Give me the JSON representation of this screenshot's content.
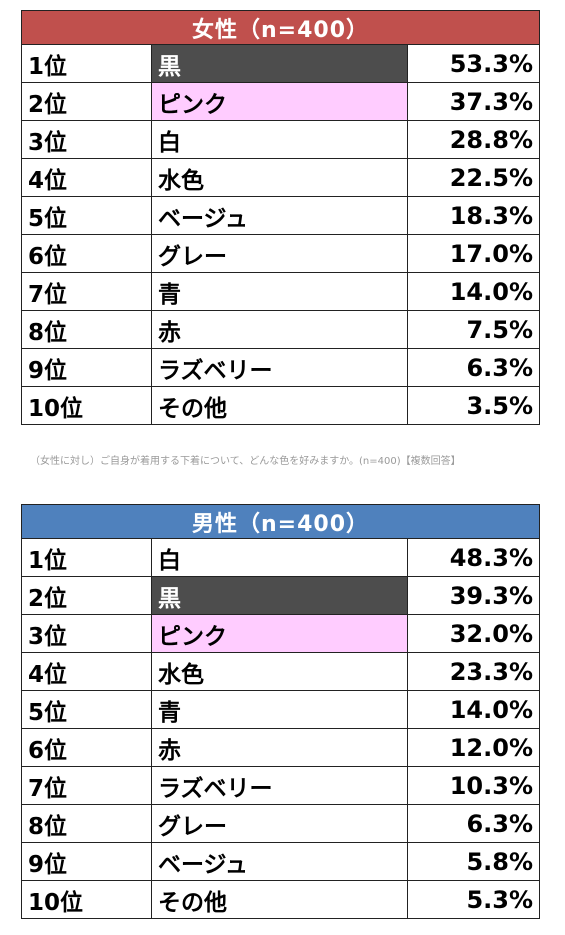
{
  "colors": {
    "female_header_bg": "#c0504d",
    "male_header_bg": "#4f81bd",
    "black_cell_bg": "#4d4d4d",
    "black_cell_text": "#ffffff",
    "pink_cell_bg": "#ffccff"
  },
  "female": {
    "header": "女性（n=400）",
    "rows": [
      {
        "rank": "1位",
        "color": "黒",
        "pct": "53.3%",
        "highlight": "black"
      },
      {
        "rank": "2位",
        "color": "ピンク",
        "pct": "37.3%",
        "highlight": "pink"
      },
      {
        "rank": "3位",
        "color": "白",
        "pct": "28.8%",
        "highlight": ""
      },
      {
        "rank": "4位",
        "color": "水色",
        "pct": "22.5%",
        "highlight": ""
      },
      {
        "rank": "5位",
        "color": "ベージュ",
        "pct": "18.3%",
        "highlight": ""
      },
      {
        "rank": "6位",
        "color": "グレー",
        "pct": "17.0%",
        "highlight": ""
      },
      {
        "rank": "7位",
        "color": "青",
        "pct": "14.0%",
        "highlight": ""
      },
      {
        "rank": "8位",
        "color": "赤",
        "pct": "7.5%",
        "highlight": ""
      },
      {
        "rank": "9位",
        "color": "ラズベリー",
        "pct": "6.3%",
        "highlight": ""
      },
      {
        "rank": "10位",
        "color": "その他",
        "pct": "3.5%",
        "highlight": ""
      }
    ]
  },
  "note": "（女性に対し）ご自身が着用する下着について、どんな色を好みますか。(n=400)【複数回答】",
  "male": {
    "header": "男性（n=400）",
    "rows": [
      {
        "rank": "1位",
        "color": "白",
        "pct": "48.3%",
        "highlight": ""
      },
      {
        "rank": "2位",
        "color": "黒",
        "pct": "39.3%",
        "highlight": "black"
      },
      {
        "rank": "3位",
        "color": "ピンク",
        "pct": "32.0%",
        "highlight": "pink"
      },
      {
        "rank": "4位",
        "color": "水色",
        "pct": "23.3%",
        "highlight": ""
      },
      {
        "rank": "5位",
        "color": "青",
        "pct": "14.0%",
        "highlight": ""
      },
      {
        "rank": "6位",
        "color": "赤",
        "pct": "12.0%",
        "highlight": ""
      },
      {
        "rank": "7位",
        "color": "ラズベリー",
        "pct": "10.3%",
        "highlight": ""
      },
      {
        "rank": "8位",
        "color": "グレー",
        "pct": "6.3%",
        "highlight": ""
      },
      {
        "rank": "9位",
        "color": "ベージュ",
        "pct": "5.8%",
        "highlight": ""
      },
      {
        "rank": "10位",
        "color": "その他",
        "pct": "5.3%",
        "highlight": ""
      }
    ]
  }
}
